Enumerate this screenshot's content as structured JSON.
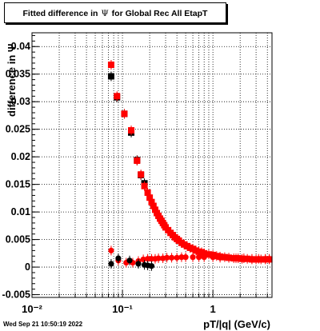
{
  "title": {
    "prefix": "Fitted difference in",
    "symbol": "Ψ",
    "suffix": "for Global Rec All EtapT"
  },
  "datestamp": "Wed Sep 21 10:50:19 2022",
  "chart_data": {
    "type": "scatter",
    "title": "Fitted difference in Ψ for Global Rec All EtapT",
    "xlabel": "pT/|q| (GeV/c)",
    "ylabel": "difference in Ψ",
    "x_scale": "log",
    "xlim": [
      0.01,
      4.5
    ],
    "ylim": [
      -0.0055,
      0.0425
    ],
    "grid": true,
    "x_ticks": [
      {
        "value": 0.01,
        "label": "10⁻²"
      },
      {
        "value": 0.1,
        "label": "10⁻¹"
      },
      {
        "value": 1,
        "label": "1"
      }
    ],
    "y_ticks": [
      {
        "value": -0.005,
        "label": "-0.005"
      },
      {
        "value": 0,
        "label": "0"
      },
      {
        "value": 0.005,
        "label": "0.005"
      },
      {
        "value": 0.01,
        "label": "0.01"
      },
      {
        "value": 0.015,
        "label": "0.015"
      },
      {
        "value": 0.02,
        "label": "0.02"
      },
      {
        "value": 0.025,
        "label": "0.025"
      },
      {
        "value": 0.03,
        "label": "0.03"
      },
      {
        "value": 0.035,
        "label": "0.035"
      },
      {
        "value": 0.04,
        "label": "0.04"
      }
    ],
    "series": [
      {
        "marker": "square",
        "color": "#000000",
        "x": [
          0.075,
          0.087,
          0.105,
          0.125,
          0.145,
          0.16,
          0.175
        ],
        "y": [
          0.0346,
          0.0308,
          0.0278,
          0.0244,
          0.0194,
          0.0167,
          0.0152
        ]
      },
      {
        "marker": "square",
        "color": "#ff0000",
        "x": [
          0.075,
          0.087,
          0.105,
          0.125,
          0.145,
          0.16,
          0.175,
          0.19,
          0.2,
          0.21,
          0.22,
          0.23,
          0.24,
          0.25,
          0.26,
          0.27,
          0.28,
          0.29,
          0.3,
          0.32,
          0.34,
          0.36,
          0.38,
          0.4,
          0.42,
          0.45,
          0.48,
          0.52,
          0.56,
          0.6,
          0.65,
          0.7,
          0.75,
          0.8,
          0.9,
          1.0,
          1.1,
          1.2,
          1.35,
          1.5,
          1.7,
          1.9,
          2.1,
          2.4,
          2.7,
          3.0,
          3.4,
          3.8,
          4.2
        ],
        "y": [
          0.0367,
          0.031,
          0.0278,
          0.0248,
          0.0193,
          0.0168,
          0.0147,
          0.0135,
          0.0126,
          0.0118,
          0.0111,
          0.0104,
          0.0098,
          0.0093,
          0.0088,
          0.0084,
          0.008,
          0.0076,
          0.0072,
          0.0067,
          0.0062,
          0.0058,
          0.0054,
          0.0051,
          0.0048,
          0.0044,
          0.0041,
          0.0038,
          0.0035,
          0.0033,
          0.003,
          0.0028,
          0.0027,
          0.0025,
          0.0023,
          0.0022,
          0.002,
          0.0019,
          0.0018,
          0.0017,
          0.0016,
          0.0016,
          0.0015,
          0.0015,
          0.0014,
          0.0014,
          0.0014,
          0.0014,
          0.0014
        ]
      },
      {
        "marker": "circle",
        "color": "#ff0000",
        "x": [
          0.075,
          0.09,
          0.11,
          0.13,
          0.15,
          0.17,
          0.19,
          0.21,
          0.23,
          0.25,
          0.28,
          0.31,
          0.35,
          0.4,
          0.45,
          0.5,
          0.6,
          0.7,
          0.8,
          1.0,
          1.2,
          1.5,
          1.8,
          2.2,
          2.7,
          3.2,
          3.8,
          4.2
        ],
        "y": [
          0.003,
          0.0012,
          0.0008,
          0.0008,
          0.0011,
          0.0014,
          0.0015,
          0.0015,
          0.0015,
          0.0016,
          0.0016,
          0.0017,
          0.0017,
          0.0017,
          0.0018,
          0.0018,
          0.0018,
          0.0018,
          0.0018,
          0.0018,
          0.0017,
          0.0017,
          0.0016,
          0.0016,
          0.0015,
          0.0015,
          0.0015,
          0.0015
        ]
      },
      {
        "marker": "circle",
        "color": "#000000",
        "x": [
          0.075,
          0.09,
          0.12,
          0.15,
          0.175,
          0.19,
          0.21
        ],
        "y": [
          0.0006,
          0.0016,
          0.0012,
          0.0006,
          0.0004,
          0.0003,
          0.0002
        ]
      }
    ]
  }
}
